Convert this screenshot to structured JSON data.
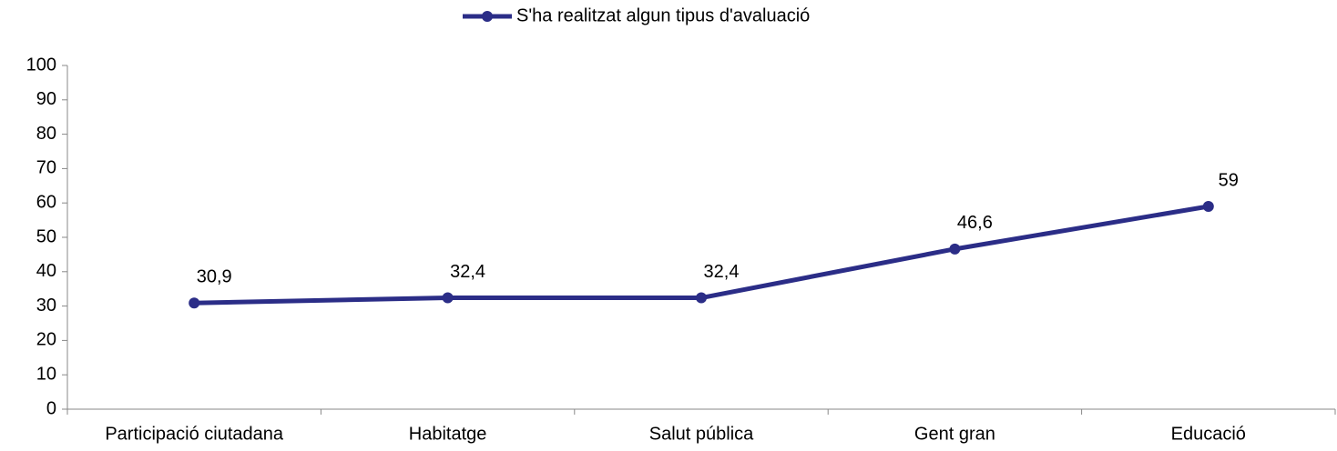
{
  "chart_data": {
    "type": "line",
    "categories": [
      "Participació ciutadana",
      "Habitatge",
      "Salut pública",
      "Gent gran",
      "Educació"
    ],
    "series": [
      {
        "name": "S'ha realitzat algun tipus d'avaluació",
        "color": "#2b2d87",
        "values": [
          30.9,
          32.4,
          32.4,
          46.6,
          59
        ],
        "value_labels": [
          "30,9",
          "32,4",
          "32,4",
          "46,6",
          "59"
        ]
      }
    ],
    "ylim": [
      0,
      100
    ],
    "yticks": [
      0,
      10,
      20,
      30,
      40,
      50,
      60,
      70,
      80,
      90,
      100
    ],
    "legend": "top"
  }
}
